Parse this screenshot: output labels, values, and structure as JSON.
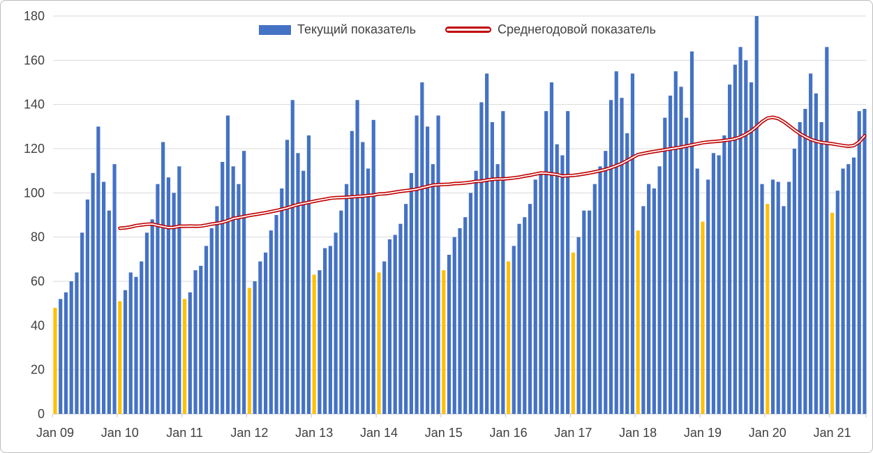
{
  "window": {
    "background": "#FFFFFF",
    "border_color": "#BDBDBD"
  },
  "colors": {
    "bar_blue": "#4472C4",
    "bar_january_yellow": "#FFC000",
    "line_red": "#C00000",
    "line_inner_white": "#FFFFFF",
    "gridline": "#D9D9D9",
    "axis_text": "#404040"
  },
  "chart_data": {
    "type": "bar",
    "title": "",
    "frequency": "monthly",
    "x_start": "Jan 2009",
    "x_end": "Jul 2021",
    "xlabel": "",
    "ylabel": "",
    "ylim": [
      0,
      180
    ],
    "grid": "horizontal",
    "legend_position": "top-center",
    "x_tick_labels": [
      "Jan 09",
      "Jan 10",
      "Jan 11",
      "Jan 12",
      "Jan 13",
      "Jan 14",
      "Jan 15",
      "Jan 16",
      "Jan 17",
      "Jan 18",
      "Jan 19",
      "Jan 20",
      "Jan 21"
    ],
    "y_ticks": [
      0,
      20,
      40,
      60,
      80,
      100,
      120,
      140,
      160,
      180
    ],
    "series": [
      {
        "name": "Текущий показатель",
        "type": "bar",
        "color": "#4472C4",
        "january_color": "#FFC000",
        "values": [
          48,
          52,
          55,
          60,
          64,
          82,
          97,
          109,
          130,
          105,
          92,
          113,
          51,
          56,
          64,
          62,
          69,
          82,
          88,
          104,
          123,
          107,
          100,
          112,
          52,
          55,
          65,
          67,
          76,
          84,
          94,
          114,
          135,
          112,
          104,
          119,
          57,
          60,
          69,
          73,
          83,
          90,
          102,
          124,
          142,
          118,
          110,
          126,
          63,
          65,
          75,
          76,
          82,
          92,
          104,
          128,
          142,
          123,
          111,
          133,
          64,
          69,
          79,
          81,
          86,
          95,
          109,
          135,
          150,
          130,
          113,
          135,
          65,
          72,
          80,
          84,
          89,
          100,
          110,
          141,
          154,
          132,
          113,
          137,
          69,
          76,
          86,
          89,
          95,
          106,
          109,
          137,
          150,
          122,
          117,
          137,
          73,
          80,
          92,
          92,
          104,
          112,
          119,
          142,
          155,
          143,
          127,
          154,
          83,
          94,
          104,
          102,
          112,
          134,
          144,
          155,
          148,
          134,
          164,
          111,
          87,
          106,
          118,
          117,
          126,
          149,
          158,
          166,
          160,
          150,
          180,
          104,
          95,
          106,
          105,
          94,
          105,
          120,
          132,
          138,
          154,
          145,
          132,
          166,
          91,
          101,
          111,
          113,
          116,
          137,
          138
        ]
      },
      {
        "name": "Среднегодовой показатель",
        "type": "line",
        "color": "#C00000",
        "inner_color": "#FFFFFF",
        "start_month_index": 12,
        "values": [
          84.0,
          84.2,
          84.6,
          85.2,
          85.5,
          85.8,
          85.9,
          85.3,
          84.8,
          84.3,
          84.4,
          84.9,
          84.9,
          85.0,
          84.9,
          85.0,
          85.4,
          85.9,
          86.2,
          86.7,
          87.4,
          88.4,
          88.8,
          89.3,
          89.8,
          90.2,
          90.6,
          91.0,
          91.5,
          92.0,
          92.6,
          93.2,
          94.0,
          94.7,
          95.2,
          95.7,
          96.2,
          96.7,
          97.1,
          97.6,
          97.8,
          97.9,
          98.0,
          98.2,
          98.4,
          98.5,
          98.8,
          99.0,
          99.5,
          99.6,
          99.9,
          100.3,
          100.7,
          101.0,
          101.3,
          101.7,
          102.3,
          102.9,
          103.5,
          103.7,
          103.8,
          103.9,
          104.2,
          104.3,
          104.5,
          104.8,
          105.2,
          105.3,
          105.8,
          106.1,
          106.3,
          106.3,
          106.5,
          106.8,
          107.1,
          107.6,
          108.0,
          108.5,
          109.0,
          108.9,
          108.6,
          108.3,
          107.6,
          107.8,
          107.9,
          108.2,
          108.6,
          109.0,
          109.5,
          110.0,
          110.6,
          111.4,
          112.3,
          113.3,
          114.6,
          116.0,
          117.3,
          117.8,
          118.3,
          118.7,
          119.1,
          119.5,
          119.9,
          120.3,
          120.7,
          121.2,
          121.7,
          122.2,
          122.7,
          123.0,
          123.2,
          123.4,
          123.7,
          124.0,
          124.5,
          125.3,
          126.5,
          128.0,
          130.0,
          132.2,
          133.8,
          134.2,
          133.6,
          132.2,
          130.4,
          128.5,
          126.8,
          125.4,
          124.2,
          123.4,
          122.8,
          122.5,
          122.2,
          121.8,
          121.4,
          121.1,
          121.4,
          123.0,
          125.8
        ]
      }
    ],
    "notes": "Monthly bars Jan 2009 - Jul 2021; each January bar is highlighted yellow; red double-outline line starts Jan 2010 and ends at ~126."
  }
}
